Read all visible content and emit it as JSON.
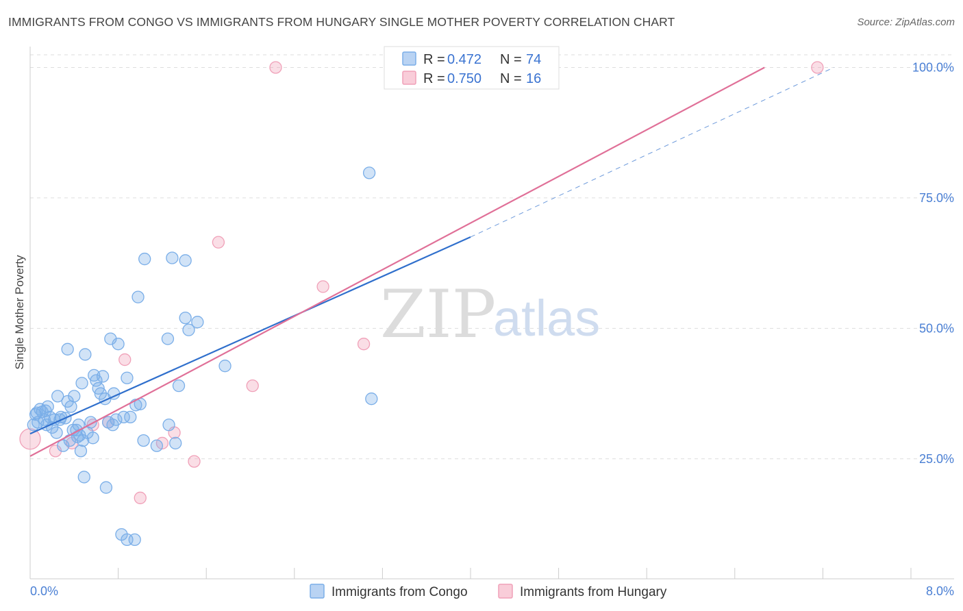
{
  "header": {
    "title": "IMMIGRANTS FROM CONGO VS IMMIGRANTS FROM HUNGARY SINGLE MOTHER POVERTY CORRELATION CHART",
    "source": "Source: ZipAtlas.com"
  },
  "watermark": {
    "zip": "ZIP",
    "atlas": "atlas"
  },
  "colors": {
    "congo": "#7aaee8",
    "congo_line": "#2f6fcc",
    "hungary": "#f0a0b8",
    "hungary_line": "#e07098",
    "grid": "#dddddd",
    "tick_text": "#4a7fd4"
  },
  "legend_top": [
    {
      "r_label": "R =",
      "r_value": "0.472",
      "n_label": "N =",
      "n_value": "74"
    },
    {
      "r_label": "R =",
      "r_value": "0.750",
      "n_label": "N =",
      "n_value": "16"
    }
  ],
  "chart_data": {
    "type": "scatter",
    "title": "IMMIGRANTS FROM CONGO VS IMMIGRANTS FROM HUNGARY SINGLE MOTHER POVERTY CORRELATION CHART",
    "xlabel": "",
    "ylabel": "Single Mother Poverty",
    "xlim": [
      0,
      8
    ],
    "ylim": [
      2,
      104
    ],
    "x_tick_labels": [
      "0.0%",
      "8.0%"
    ],
    "y_ticks": [
      25,
      50,
      75,
      100
    ],
    "y_tick_labels": [
      "25.0%",
      "50.0%",
      "75.0%",
      "100.0%"
    ],
    "legend_position": "top-center",
    "series": [
      {
        "name": "Immigrants from Congo",
        "R": 0.472,
        "N": 74,
        "trend": {
          "x0": 0,
          "y0": 29.8,
          "x1": 4.0,
          "y1": 67.5,
          "dash_x1": 7.3,
          "dash_y1": 100
        },
        "points": [
          [
            0.03,
            31.5
          ],
          [
            0.05,
            33.5
          ],
          [
            0.07,
            32.0
          ],
          [
            0.09,
            34.5
          ],
          [
            0.11,
            34.0
          ],
          [
            0.13,
            32.5
          ],
          [
            0.15,
            31.5
          ],
          [
            0.16,
            35.0
          ],
          [
            0.18,
            33.0
          ],
          [
            0.2,
            31.0
          ],
          [
            0.22,
            32.5
          ],
          [
            0.24,
            30.0
          ],
          [
            0.25,
            37.0
          ],
          [
            0.27,
            32.5
          ],
          [
            0.28,
            33.0
          ],
          [
            0.3,
            27.5
          ],
          [
            0.32,
            32.8
          ],
          [
            0.34,
            36.0
          ],
          [
            0.34,
            46.0
          ],
          [
            0.36,
            28.5
          ],
          [
            0.37,
            35.0
          ],
          [
            0.39,
            30.5
          ],
          [
            0.4,
            37.0
          ],
          [
            0.42,
            30.5
          ],
          [
            0.44,
            31.5
          ],
          [
            0.45,
            29.5
          ],
          [
            0.46,
            26.5
          ],
          [
            0.47,
            39.5
          ],
          [
            0.48,
            28.5
          ],
          [
            0.49,
            21.5
          ],
          [
            0.5,
            45.0
          ],
          [
            0.52,
            30.0
          ],
          [
            0.55,
            32.0
          ],
          [
            0.57,
            29.0
          ],
          [
            0.58,
            41.0
          ],
          [
            0.6,
            40.0
          ],
          [
            0.62,
            38.5
          ],
          [
            0.64,
            37.5
          ],
          [
            0.66,
            40.8
          ],
          [
            0.68,
            36.5
          ],
          [
            0.69,
            19.5
          ],
          [
            0.71,
            32.0
          ],
          [
            0.73,
            48.0
          ],
          [
            0.75,
            31.5
          ],
          [
            0.76,
            37.5
          ],
          [
            0.78,
            32.5
          ],
          [
            0.8,
            47.0
          ],
          [
            0.83,
            10.5
          ],
          [
            0.85,
            33.0
          ],
          [
            0.88,
            40.5
          ],
          [
            0.88,
            9.5
          ],
          [
            0.91,
            33.0
          ],
          [
            0.95,
            9.5
          ],
          [
            0.96,
            35.3
          ],
          [
            0.98,
            56.0
          ],
          [
            1.0,
            35.5
          ],
          [
            1.03,
            28.5
          ],
          [
            1.04,
            63.3
          ],
          [
            1.15,
            27.5
          ],
          [
            1.25,
            48.0
          ],
          [
            1.26,
            31.5
          ],
          [
            1.29,
            63.5
          ],
          [
            1.32,
            28.0
          ],
          [
            1.35,
            39.0
          ],
          [
            1.41,
            52.0
          ],
          [
            1.41,
            63.0
          ],
          [
            1.44,
            49.7
          ],
          [
            1.52,
            51.2
          ],
          [
            1.77,
            42.8
          ],
          [
            3.1,
            36.5
          ],
          [
            3.08,
            79.8
          ],
          [
            0.06,
            33.8
          ],
          [
            0.14,
            34.2
          ],
          [
            0.43,
            29.2
          ]
        ]
      },
      {
        "name": "Immigrants from Hungary",
        "R": 0.75,
        "N": 16,
        "trend": {
          "x0": 0,
          "y0": 25.5,
          "x1": 6.67,
          "y1": 100
        },
        "points": [
          [
            0.0,
            28.8
          ],
          [
            0.23,
            26.5
          ],
          [
            0.38,
            28.0
          ],
          [
            0.57,
            31.5
          ],
          [
            0.71,
            32.0
          ],
          [
            0.86,
            44.0
          ],
          [
            1.0,
            17.5
          ],
          [
            1.2,
            28.0
          ],
          [
            1.31,
            30.0
          ],
          [
            1.49,
            24.5
          ],
          [
            1.71,
            66.5
          ],
          [
            2.02,
            39.0
          ],
          [
            2.23,
            100.0
          ],
          [
            2.66,
            58.0
          ],
          [
            3.03,
            47.0
          ],
          [
            7.15,
            100.0
          ]
        ]
      }
    ]
  }
}
